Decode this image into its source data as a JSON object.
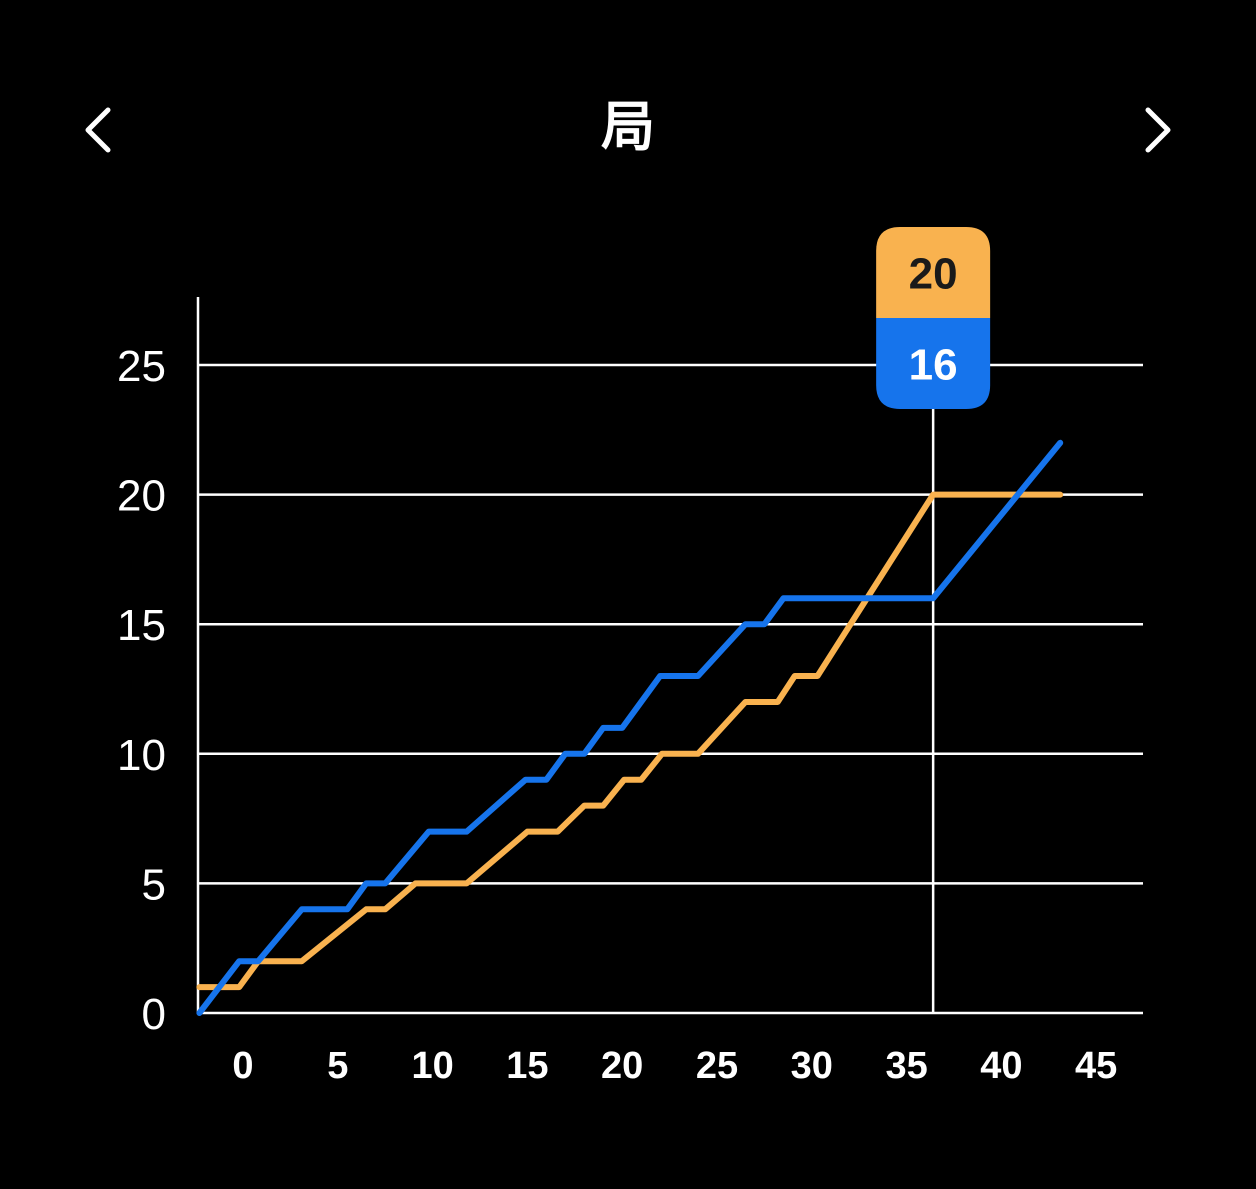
{
  "header": {
    "title": "局",
    "prev_icon": "chevron-left-icon",
    "next_icon": "chevron-right-icon"
  },
  "chart_data": {
    "type": "line",
    "x_ticks": [
      0,
      5,
      10,
      15,
      20,
      25,
      30,
      35,
      40,
      45
    ],
    "y_ticks": [
      0,
      5,
      10,
      15,
      20,
      25
    ],
    "xlim": [
      -2.3,
      47.6
    ],
    "ylim": [
      0,
      27.5
    ],
    "grid": "horizontal",
    "series": [
      {
        "color": "#F9B24F",
        "points": [
          [
            -2.3,
            1
          ],
          [
            -0.2,
            1
          ],
          [
            0.8,
            2
          ],
          [
            3.1,
            2
          ],
          [
            6.5,
            4
          ],
          [
            7.5,
            4
          ],
          [
            9.1,
            5
          ],
          [
            11.8,
            5
          ],
          [
            15,
            7
          ],
          [
            16.6,
            7
          ],
          [
            18,
            8
          ],
          [
            19,
            8
          ],
          [
            20.1,
            9
          ],
          [
            21,
            9
          ],
          [
            22.1,
            10
          ],
          [
            24,
            10
          ],
          [
            26.5,
            12
          ],
          [
            28.2,
            12
          ],
          [
            29.1,
            13
          ],
          [
            30.3,
            13
          ],
          [
            36.4,
            20
          ],
          [
            43.1,
            20
          ]
        ]
      },
      {
        "color": "#1674EC",
        "points": [
          [
            -2.3,
            0
          ],
          [
            -0.2,
            2
          ],
          [
            0.8,
            2
          ],
          [
            3.1,
            4
          ],
          [
            5.5,
            4
          ],
          [
            6.5,
            5
          ],
          [
            7.5,
            5
          ],
          [
            9.8,
            7
          ],
          [
            11.8,
            7
          ],
          [
            14.9,
            9
          ],
          [
            16,
            9
          ],
          [
            17,
            10
          ],
          [
            18,
            10
          ],
          [
            19,
            11
          ],
          [
            20,
            11
          ],
          [
            22,
            13
          ],
          [
            24,
            13
          ],
          [
            26.5,
            15
          ],
          [
            27.5,
            15
          ],
          [
            28.5,
            16
          ],
          [
            36.4,
            16
          ],
          [
            43.1,
            22
          ]
        ]
      }
    ],
    "tooltip": {
      "x": 36.4,
      "values": [
        {
          "label": "20",
          "color": "#F9B24F",
          "text_color": "#1a1a1a"
        },
        {
          "label": "16",
          "color": "#1674EC",
          "text_color": "#ffffff"
        }
      ]
    }
  }
}
